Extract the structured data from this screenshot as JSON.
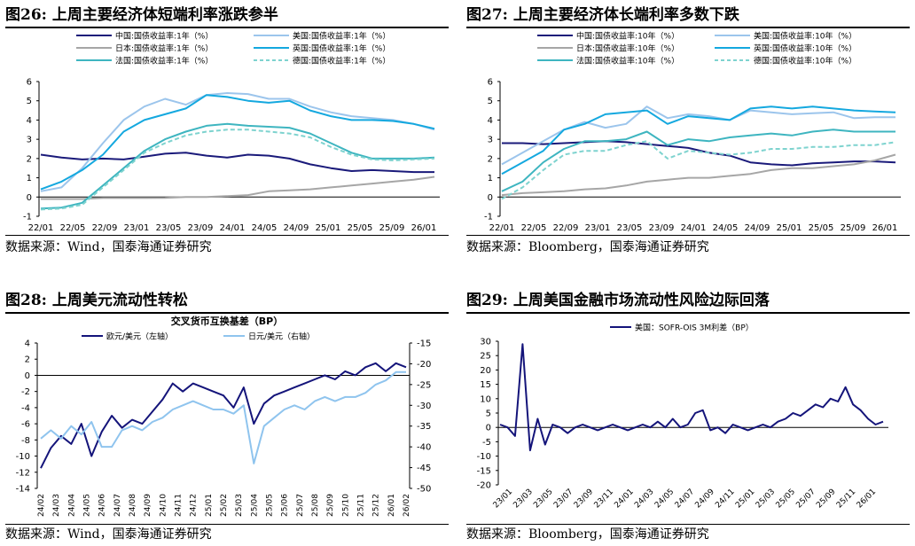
{
  "colors": {
    "cn": "#1a1a7a",
    "jp": "#a6a6a6",
    "fr": "#3eb5c0",
    "us": "#9cc5ec",
    "uk": "#14a8df",
    "de": "#7ed3cf",
    "navy": "#14147a",
    "lightblue": "#8fc4ee"
  },
  "source_wind": "数据来源：Wind，国泰海通证券研究",
  "source_bbg": "数据来源：Bloomberg，国泰海通证券研究",
  "fig26": {
    "title": "图26:  上周主要经济体短端利率涨跌参半"
  },
  "fig27": {
    "title": "图27:  上周主要经济体长端利率多数下跌"
  },
  "fig28": {
    "title": "图28:  上周美元流动性转松"
  },
  "fig29": {
    "title": "图29:  上周美国金融市场流动性风险边际回落"
  },
  "chart_data": [
    {
      "id": "fig26",
      "type": "line",
      "title": "上周主要经济体短端利率涨跌参半",
      "x_ticks": [
        "22/01",
        "22/05",
        "22/09",
        "23/01",
        "23/05",
        "23/09",
        "24/01",
        "24/05",
        "24/09",
        "25/01",
        "25/05",
        "25/09",
        "26/01"
      ],
      "ylim": [
        -1,
        6
      ],
      "y_ticks": [
        -1,
        0,
        1,
        2,
        3,
        4,
        5,
        6
      ],
      "series": [
        {
          "name": "中国:国债收益率:1年（%）",
          "color": "cn",
          "dash": false,
          "values": [
            2.2,
            2.05,
            1.95,
            2.0,
            1.95,
            2.1,
            2.25,
            2.3,
            2.15,
            2.05,
            2.2,
            2.15,
            2.0,
            1.7,
            1.5,
            1.35,
            1.4,
            1.35,
            1.3,
            1.3
          ]
        },
        {
          "name": "美国:国债收益率:1年（%）",
          "color": "us",
          "dash": false,
          "values": [
            0.3,
            0.5,
            1.5,
            2.8,
            4.0,
            4.7,
            5.1,
            4.8,
            5.3,
            5.4,
            5.35,
            5.1,
            5.1,
            4.7,
            4.4,
            4.2,
            4.1,
            4.0,
            3.8,
            3.5
          ]
        },
        {
          "name": "日本:国债收益率:1年（%）",
          "color": "jp",
          "dash": false,
          "values": [
            -0.1,
            -0.1,
            -0.1,
            -0.05,
            -0.05,
            -0.05,
            -0.04,
            0.0,
            0.0,
            0.05,
            0.1,
            0.3,
            0.35,
            0.4,
            0.5,
            0.6,
            0.7,
            0.8,
            0.9,
            1.05
          ]
        },
        {
          "name": "英国:国债收益率:1年（%）",
          "color": "uk",
          "dash": false,
          "values": [
            0.4,
            0.8,
            1.4,
            2.2,
            3.4,
            4.0,
            4.3,
            4.6,
            5.3,
            5.2,
            5.0,
            4.9,
            5.0,
            4.5,
            4.2,
            4.0,
            4.0,
            3.95,
            3.8,
            3.55
          ]
        },
        {
          "name": "法国:国债收益率:1年（%）",
          "color": "fr",
          "dash": false,
          "values": [
            -0.6,
            -0.55,
            -0.3,
            0.6,
            1.5,
            2.4,
            3.0,
            3.4,
            3.7,
            3.8,
            3.7,
            3.65,
            3.6,
            3.3,
            2.8,
            2.3,
            2.0,
            2.0,
            2.0,
            2.05
          ]
        },
        {
          "name": "德国:国债收益率:1年（%）",
          "color": "de",
          "dash": true,
          "values": [
            -0.65,
            -0.6,
            -0.4,
            0.5,
            1.4,
            2.3,
            2.8,
            3.2,
            3.4,
            3.5,
            3.5,
            3.4,
            3.3,
            3.1,
            2.6,
            2.2,
            1.95,
            1.9,
            1.95,
            2.0
          ]
        }
      ]
    },
    {
      "id": "fig27",
      "type": "line",
      "title": "上周主要经济体长端利率多数下跌",
      "x_ticks": [
        "22/01",
        "22/05",
        "22/09",
        "23/01",
        "23/05",
        "23/09",
        "24/01",
        "24/05",
        "24/09",
        "25/01",
        "25/05",
        "25/09",
        "26/01"
      ],
      "ylim": [
        -1,
        6
      ],
      "y_ticks": [
        -1,
        0,
        1,
        2,
        3,
        4,
        5,
        6
      ],
      "series": [
        {
          "name": "中国:国债收益率:10年（%）",
          "color": "cn",
          "dash": false,
          "values": [
            2.8,
            2.8,
            2.75,
            2.8,
            2.85,
            2.9,
            2.85,
            2.75,
            2.65,
            2.55,
            2.3,
            2.15,
            1.8,
            1.7,
            1.65,
            1.75,
            1.8,
            1.85,
            1.85,
            1.8
          ]
        },
        {
          "name": "美国:国债收益率:10年（%）",
          "color": "us",
          "dash": false,
          "values": [
            1.7,
            2.3,
            2.9,
            3.5,
            3.9,
            3.6,
            3.8,
            4.7,
            4.1,
            4.3,
            4.2,
            4.0,
            4.5,
            4.4,
            4.3,
            4.35,
            4.4,
            4.1,
            4.15,
            4.15
          ]
        },
        {
          "name": "日本:国债收益率:10年（%）",
          "color": "jp",
          "dash": false,
          "values": [
            0.1,
            0.2,
            0.25,
            0.3,
            0.4,
            0.45,
            0.6,
            0.8,
            0.9,
            1.0,
            1.0,
            1.1,
            1.2,
            1.4,
            1.5,
            1.5,
            1.6,
            1.7,
            1.9,
            2.2
          ]
        },
        {
          "name": "英国:国债收益率:10年（%）",
          "color": "uk",
          "dash": false,
          "values": [
            1.2,
            1.8,
            2.4,
            3.5,
            3.8,
            4.3,
            4.4,
            4.5,
            3.8,
            4.2,
            4.1,
            4.0,
            4.6,
            4.7,
            4.6,
            4.7,
            4.6,
            4.5,
            4.45,
            4.4
          ]
        },
        {
          "name": "法国:国债收益率:10年（%）",
          "color": "fr",
          "dash": false,
          "values": [
            0.3,
            0.8,
            1.8,
            2.5,
            2.9,
            2.9,
            3.0,
            3.4,
            2.7,
            3.0,
            2.9,
            3.1,
            3.2,
            3.3,
            3.2,
            3.4,
            3.5,
            3.4,
            3.4,
            3.4
          ]
        },
        {
          "name": "德国:国债收益率:10年（%）",
          "color": "de",
          "dash": true,
          "values": [
            -0.1,
            0.5,
            1.4,
            2.2,
            2.4,
            2.4,
            2.7,
            2.9,
            2.0,
            2.4,
            2.3,
            2.2,
            2.3,
            2.5,
            2.5,
            2.6,
            2.6,
            2.7,
            2.7,
            2.85
          ]
        }
      ]
    },
    {
      "id": "fig28",
      "type": "line",
      "title": "交叉货币互换基差（BP）",
      "x_ticks": [
        "24/02",
        "24/03",
        "24/04",
        "24/05",
        "24/06",
        "24/07",
        "24/08",
        "24/09",
        "24/10",
        "24/11",
        "24/12",
        "25/01",
        "25/02",
        "25/03",
        "25/04",
        "25/05",
        "25/06",
        "25/07",
        "25/08",
        "25/09",
        "25/10",
        "25/11",
        "25/12",
        "26/01",
        "26/02"
      ],
      "ylim": [
        -14,
        4
      ],
      "y_ticks": [
        4,
        2,
        0,
        -2,
        -4,
        -6,
        -8,
        -10,
        -12,
        -14
      ],
      "y2lim": [
        -50,
        -15
      ],
      "y2_ticks": [
        -15,
        -20,
        -25,
        -30,
        -35,
        -40,
        -45,
        -50
      ],
      "series": [
        {
          "name": "欧元/美元（左轴）",
          "axis": "left",
          "color": "navy",
          "values": [
            -11.5,
            -9,
            -7.5,
            -8.5,
            -6,
            -10,
            -7,
            -5,
            -6.5,
            -5.5,
            -6,
            -4.5,
            -3,
            -1,
            -2,
            -1,
            -1.5,
            -2,
            -2.5,
            -4,
            -1.5,
            -6,
            -3.5,
            -2.5,
            -2,
            -1.5,
            -1,
            -0.5,
            0,
            -0.5,
            0.5,
            0,
            1,
            1.5,
            0.5,
            1.5,
            1
          ]
        },
        {
          "name": "日元/美元（右轴）",
          "axis": "right",
          "color": "lightblue",
          "values": [
            -38,
            -36,
            -38,
            -35,
            -37,
            -34,
            -40,
            -40,
            -36,
            -35,
            -36,
            -34,
            -33,
            -31,
            -30,
            -29,
            -30,
            -31,
            -31,
            -32,
            -30,
            -44,
            -35,
            -33,
            -31,
            -30,
            -31,
            -29,
            -28,
            -29,
            -28,
            -28,
            -27,
            -25,
            -24,
            -22,
            -22
          ]
        }
      ]
    },
    {
      "id": "fig29",
      "type": "line",
      "title": "美国：SOFR-OIS 3M利差（BP）",
      "x_ticks": [
        "23/01",
        "23/03",
        "23/05",
        "23/07",
        "23/09",
        "23/11",
        "24/01",
        "24/03",
        "24/05",
        "24/07",
        "24/09",
        "24/11",
        "25/01",
        "25/03",
        "25/05",
        "25/07",
        "25/09",
        "25/11",
        "26/01"
      ],
      "ylim": [
        -20,
        30
      ],
      "y_ticks": [
        30,
        25,
        20,
        15,
        10,
        5,
        0,
        -5,
        -10,
        -15,
        -20
      ],
      "series": [
        {
          "name": "美国：SOFR-OIS 3M利差（BP）",
          "color": "navy",
          "values": [
            1,
            0,
            -3,
            29,
            -8,
            3,
            -6,
            1,
            0,
            -2,
            0,
            1,
            0,
            -1,
            0,
            1,
            0,
            -1,
            0,
            1,
            0,
            2,
            0,
            3,
            0,
            1,
            5,
            6,
            -1,
            0,
            -2,
            1,
            0,
            -1,
            0,
            1,
            0,
            2,
            3,
            5,
            4,
            6,
            8,
            7,
            10,
            9,
            14,
            8,
            6,
            3,
            1,
            2
          ]
        }
      ]
    }
  ]
}
